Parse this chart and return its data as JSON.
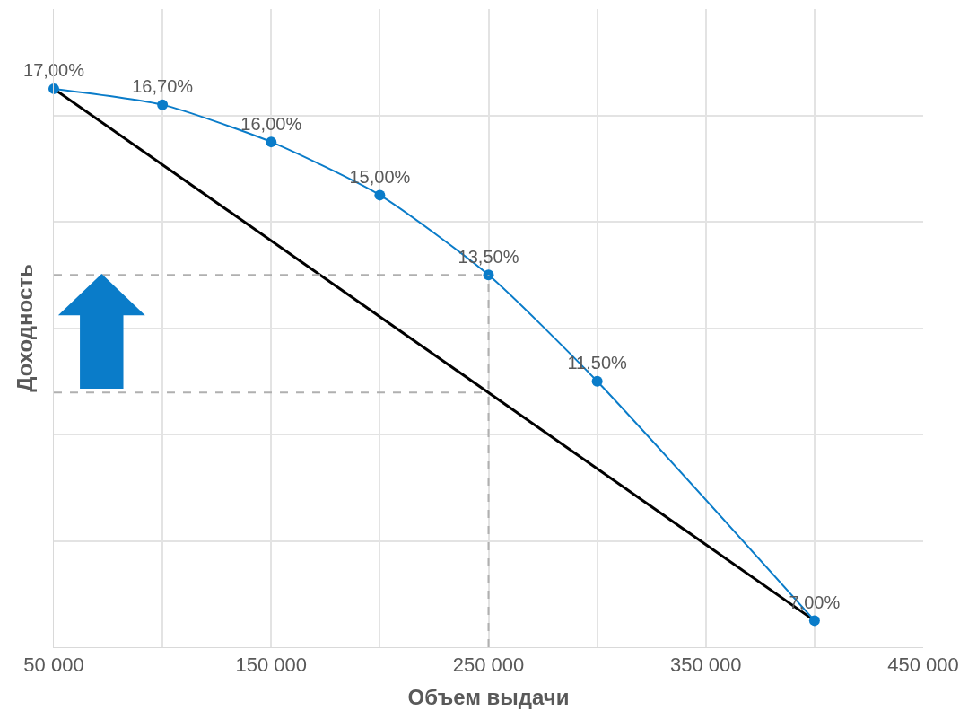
{
  "chart_data": {
    "type": "line",
    "xlabel": "Объем выдачи",
    "ylabel": "Доходность",
    "series": [
      {
        "color": "#0a7cc9",
        "x": [
          50000,
          100000,
          150000,
          200000,
          250000,
          300000,
          400000
        ],
        "values": [
          17,
          16.7,
          16,
          15,
          13.5,
          11.5,
          7
        ],
        "value_labels": [
          "17,00%",
          "16,70%",
          "16,00%",
          "15,00%",
          "13,50%",
          "11,50%",
          "7,00%"
        ],
        "marker": "circle",
        "line_style": "solid"
      },
      {
        "color": "#000000",
        "x": [
          50000,
          400000
        ],
        "values": [
          17,
          7
        ],
        "marker": "none",
        "line_style": "solid"
      }
    ],
    "ref_lines": [
      {
        "axis": "y",
        "value": 13.5,
        "color": "#b0b0b0",
        "line_style": "dashed"
      },
      {
        "axis": "y",
        "value": 11.29,
        "color": "#b0b0b0",
        "line_style": "dashed"
      },
      {
        "axis": "x",
        "value": 250000,
        "color": "#b0b0b0",
        "line_style": "dashed"
      }
    ],
    "xlim": [
      50000,
      450000
    ],
    "xticks": [
      {
        "value": 50000,
        "label": "50 000"
      },
      {
        "value": 100000,
        "label": null
      },
      {
        "value": 150000,
        "label": "150 000"
      },
      {
        "value": 200000,
        "label": null
      },
      {
        "value": 250000,
        "label": "250 000"
      },
      {
        "value": 300000,
        "label": null
      },
      {
        "value": 350000,
        "label": "350 000"
      },
      {
        "value": 400000,
        "label": null
      },
      {
        "value": 450000,
        "label": "450 000"
      }
    ],
    "ylim": [
      6.5,
      18.5
    ],
    "yticks": [
      {
        "value": 6.5,
        "label": null
      },
      {
        "value": 8.5,
        "label": null
      },
      {
        "value": 10.5,
        "label": null
      },
      {
        "value": 12.5,
        "label": null
      },
      {
        "value": 14.5,
        "label": null
      },
      {
        "value": 16.5,
        "label": null
      }
    ],
    "tick_labels": "x",
    "grid": true
  }
}
